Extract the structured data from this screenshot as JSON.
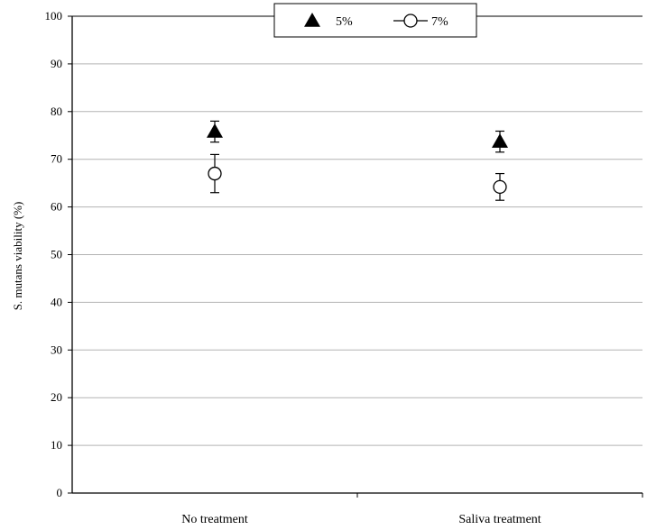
{
  "chart_data": {
    "type": "scatter",
    "title": "",
    "xlabel": "",
    "ylabel": "S. mutans viability (%)",
    "ylim": [
      0,
      100
    ],
    "yticks": [
      0,
      10,
      20,
      30,
      40,
      50,
      60,
      70,
      80,
      90,
      100
    ],
    "categories": [
      "No treatment",
      "Saliva treatment"
    ],
    "grid": true,
    "legend_position": "top-center",
    "series": [
      {
        "name": "5%",
        "marker": "filled-triangle",
        "color": "#000000",
        "values": [
          75.8,
          73.7
        ],
        "error": [
          2.2,
          2.2
        ]
      },
      {
        "name": "7%",
        "marker": "open-circle",
        "color": "#000000",
        "values": [
          67.0,
          64.2
        ],
        "error": [
          4.0,
          2.8
        ]
      }
    ]
  }
}
